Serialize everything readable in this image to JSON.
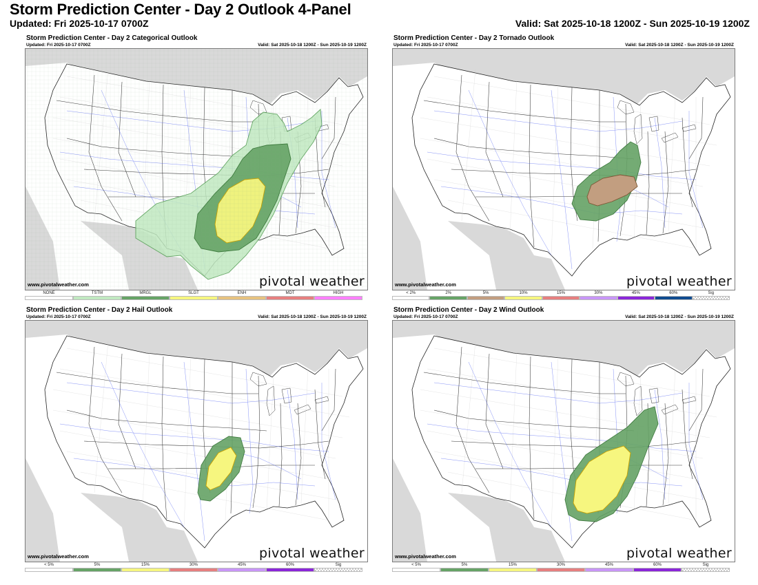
{
  "header": {
    "title": "Storm Prediction Center - Day 2 Outlook 4-Panel",
    "updated": "Updated: Fri 2025-10-17 0700Z",
    "valid": "Valid: Sat 2025-10-18 1200Z - Sun 2025-10-19 1200Z"
  },
  "panels": [
    {
      "title": "Storm Prediction Center - Day 2 Categorical Outlook",
      "updated": "Updated: Fri 2025-10-17 0700Z",
      "valid": "Valid: Sat 2025-10-18 1200Z - Sun 2025-10-19 1200Z",
      "site": "www.pivotalweather.com",
      "logo": "pivotal weather",
      "legend": [
        {
          "label": "NONE",
          "color": "#ffffff"
        },
        {
          "label": "TSTM",
          "color": "#c1e9c1"
        },
        {
          "label": "MRGL",
          "color": "#66a366"
        },
        {
          "label": "SLGT",
          "color": "#f6f67f"
        },
        {
          "label": "ENH",
          "color": "#e6c27f"
        },
        {
          "label": "MDT",
          "color": "#e67f7f"
        },
        {
          "label": "HIGH",
          "color": "#ff80ff"
        }
      ]
    },
    {
      "title": "Storm Prediction Center - Day 2 Tornado Outlook",
      "updated": "Updated: Fri 2025-10-17 0700Z",
      "valid": "Valid: Sat 2025-10-18 1200Z - Sun 2025-10-19 1200Z",
      "site": "www.pivotalweather.com",
      "logo": "pivotal weather",
      "legend": [
        {
          "label": "< 2%",
          "color": "#ffffff"
        },
        {
          "label": "2%",
          "color": "#66a366"
        },
        {
          "label": "5%",
          "color": "#c29e80"
        },
        {
          "label": "10%",
          "color": "#f6f67f"
        },
        {
          "label": "15%",
          "color": "#e67f7f"
        },
        {
          "label": "30%",
          "color": "#c896f7"
        },
        {
          "label": "45%",
          "color": "#8b27d9"
        },
        {
          "label": "60%",
          "color": "#104c8f"
        },
        {
          "label": "Sig",
          "color": "checker"
        }
      ]
    },
    {
      "title": "Storm Prediction Center - Day 2 Hail Outlook",
      "updated": "Updated: Fri 2025-10-17 0700Z",
      "valid": "Valid: Sat 2025-10-18 1200Z - Sun 2025-10-19 1200Z",
      "site": "www.pivotalweather.com",
      "logo": "pivotal weather",
      "legend": [
        {
          "label": "< 5%",
          "color": "#ffffff"
        },
        {
          "label": "5%",
          "color": "#66a366"
        },
        {
          "label": "15%",
          "color": "#f6f67f"
        },
        {
          "label": "30%",
          "color": "#e67f7f"
        },
        {
          "label": "45%",
          "color": "#c896f7"
        },
        {
          "label": "60%",
          "color": "#8b27d9"
        },
        {
          "label": "Sig",
          "color": "checker"
        }
      ]
    },
    {
      "title": "Storm Prediction Center - Day 2 Wind Outlook",
      "updated": "Updated: Fri 2025-10-17 0700Z",
      "valid": "Valid: Sat 2025-10-18 1200Z - Sun 2025-10-19 1200Z",
      "site": "www.pivotalweather.com",
      "logo": "pivotal weather",
      "legend": [
        {
          "label": "< 5%",
          "color": "#ffffff"
        },
        {
          "label": "5%",
          "color": "#66a366"
        },
        {
          "label": "15%",
          "color": "#f6f67f"
        },
        {
          "label": "30%",
          "color": "#e67f7f"
        },
        {
          "label": "45%",
          "color": "#c896f7"
        },
        {
          "label": "60%",
          "color": "#8b27d9"
        },
        {
          "label": "Sig",
          "color": "checker"
        }
      ]
    }
  ]
}
